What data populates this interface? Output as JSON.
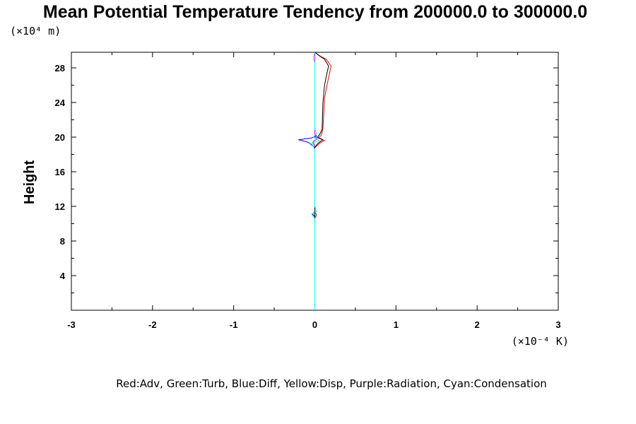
{
  "chart_data": {
    "type": "line",
    "title": "Mean Potential Temperature Tendency from 200000.0 to 300000.0",
    "ylabel": "Height",
    "y_scale_note": "(×10⁴ m)",
    "x_scale_note": "(×10⁻⁴ K)",
    "xlim": [
      -3,
      3
    ],
    "ylim": [
      0,
      29.8
    ],
    "x_ticks": [
      "-3",
      "-2",
      "-1",
      "0",
      "1",
      "2",
      "3"
    ],
    "y_ticks": [
      "4",
      "8",
      "12",
      "16",
      "20",
      "24",
      "28"
    ],
    "legend_text": "Red:Adv, Green:Turb, Blue:Diff, Yellow:Disp, Purple:Radiation, Cyan:Condensation",
    "series": [
      {
        "color": "#ff0000",
        "points": [
          [
            0.0,
            0.0
          ],
          [
            0.0,
            10.6
          ],
          [
            0.02,
            11.0
          ],
          [
            0.0,
            11.4
          ],
          [
            0.0,
            18.8
          ],
          [
            0.06,
            19.3
          ],
          [
            0.12,
            19.6
          ],
          [
            0.04,
            19.9
          ],
          [
            0.08,
            20.2
          ],
          [
            0.1,
            21.0
          ],
          [
            0.12,
            24.5
          ],
          [
            0.15,
            26.0
          ],
          [
            0.18,
            27.3
          ],
          [
            0.2,
            28.2
          ],
          [
            0.14,
            29.0
          ],
          [
            0.06,
            29.4
          ],
          [
            0.0,
            29.8
          ]
        ]
      },
      {
        "color": "#00ff00",
        "points": [
          [
            0.0,
            0.0
          ],
          [
            0.0,
            10.8
          ],
          [
            -0.02,
            11.1
          ],
          [
            0.0,
            11.4
          ],
          [
            0.0,
            18.9
          ],
          [
            -0.03,
            19.4
          ],
          [
            0.02,
            19.7
          ],
          [
            0.0,
            20.1
          ],
          [
            0.0,
            29.8
          ]
        ]
      },
      {
        "color": "#0000ff",
        "points": [
          [
            0.0,
            0.0
          ],
          [
            0.0,
            10.8
          ],
          [
            -0.03,
            11.1
          ],
          [
            0.0,
            11.4
          ],
          [
            0.0,
            18.8
          ],
          [
            -0.08,
            19.4
          ],
          [
            -0.2,
            19.7
          ],
          [
            -0.04,
            19.9
          ],
          [
            0.02,
            20.1
          ],
          [
            0.0,
            20.4
          ],
          [
            0.0,
            29.8
          ]
        ]
      },
      {
        "color": "#ff00ff",
        "points": [
          [
            0.0,
            0.0
          ],
          [
            0.0,
            19.0
          ],
          [
            -0.02,
            19.5
          ],
          [
            0.03,
            19.8
          ],
          [
            0.0,
            20.2
          ],
          [
            0.0,
            29.8
          ]
        ]
      },
      {
        "color": "#000000",
        "points": [
          [
            0.0,
            0.0
          ],
          [
            0.0,
            10.7
          ],
          [
            0.0,
            11.3
          ],
          [
            0.0,
            18.8
          ],
          [
            0.04,
            19.3
          ],
          [
            0.1,
            19.7
          ],
          [
            0.03,
            20.0
          ],
          [
            0.06,
            20.3
          ],
          [
            0.09,
            20.9
          ],
          [
            0.1,
            24.0
          ],
          [
            0.12,
            26.0
          ],
          [
            0.15,
            27.4
          ],
          [
            0.17,
            28.2
          ],
          [
            0.12,
            29.0
          ],
          [
            0.04,
            29.5
          ],
          [
            0.0,
            29.8
          ]
        ]
      },
      {
        "color": "#00ffff",
        "points": [
          [
            0.0,
            0.0
          ],
          [
            0.0,
            10.6
          ],
          [
            -0.04,
            11.1
          ],
          [
            0.02,
            11.4
          ],
          [
            0.0,
            12.0
          ],
          [
            0.0,
            18.6
          ],
          [
            -0.04,
            19.3
          ],
          [
            0.06,
            19.6
          ],
          [
            -0.02,
            20.0
          ],
          [
            0.02,
            20.4
          ],
          [
            0.0,
            21.0
          ],
          [
            0.0,
            28.6
          ],
          [
            -0.02,
            29.2
          ],
          [
            0.0,
            29.8
          ]
        ]
      }
    ]
  }
}
